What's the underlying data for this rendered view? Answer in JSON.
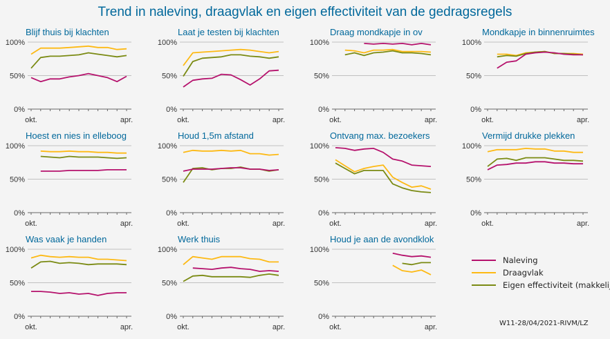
{
  "chart_data": {
    "type": "line",
    "title": "Trend in naleving, draagvlak en eigen effectiviteit van de gedragsregels",
    "x_tick_labels": [
      "okt.",
      "apr."
    ],
    "y_tick_labels": [
      "100%",
      "50%",
      "0%"
    ],
    "ylim": [
      0,
      100
    ],
    "n_points": 11,
    "grid": true,
    "legend_position": "bottom-right",
    "colors": {
      "naleving": "#b5116c",
      "draagvlak": "#fdb913",
      "eigen": "#7a8a12",
      "title": "#01689b",
      "grid": "#c0c0c0"
    },
    "legend": [
      {
        "key": "naleving",
        "label": "Naleving"
      },
      {
        "key": "draagvlak",
        "label": "Draagvlak"
      },
      {
        "key": "eigen",
        "label": "Eigen effectiviteit (makkelijk)"
      }
    ],
    "footer": "W11-28/04/2021-RIVM/LZ",
    "panels": [
      {
        "title": "Blijf thuis bij klachten",
        "naleving": [
          47,
          41,
          45,
          45,
          48,
          50,
          53,
          50,
          47,
          41,
          49
        ],
        "draagvlak": [
          82,
          91,
          91,
          91,
          92,
          93,
          94,
          92,
          92,
          89,
          90
        ],
        "eigen": [
          61,
          77,
          79,
          79,
          80,
          81,
          84,
          82,
          80,
          78,
          80
        ]
      },
      {
        "title": "Laat je testen bij klachten",
        "naleving": [
          33,
          43,
          45,
          46,
          52,
          51,
          44,
          36,
          45,
          57,
          58
        ],
        "draagvlak": [
          65,
          84,
          85,
          86,
          87,
          88,
          89,
          88,
          86,
          84,
          86
        ],
        "eigen": [
          49,
          71,
          76,
          77,
          78,
          81,
          81,
          79,
          78,
          76,
          78
        ]
      },
      {
        "title": "Draag mondkapje in ov",
        "naleving": [
          null,
          null,
          null,
          98,
          97,
          98,
          97,
          98,
          96,
          98,
          96
        ],
        "draagvlak": [
          null,
          88,
          87,
          84,
          88,
          88,
          89,
          86,
          86,
          86,
          85
        ],
        "eigen": [
          null,
          81,
          84,
          80,
          84,
          85,
          87,
          84,
          84,
          83,
          81
        ]
      },
      {
        "title": "Mondkapje in binnenruimtes",
        "naleving": [
          null,
          61,
          70,
          72,
          82,
          84,
          85,
          84,
          82,
          81,
          81
        ],
        "draagvlak": [
          null,
          82,
          82,
          80,
          84,
          85,
          86,
          83,
          83,
          83,
          82
        ],
        "eigen": [
          null,
          78,
          80,
          79,
          83,
          85,
          86,
          83,
          83,
          82,
          81
        ]
      },
      {
        "title": "Hoest en nies in elleboog",
        "naleving": [
          null,
          62,
          62,
          62,
          63,
          63,
          63,
          63,
          64,
          64,
          64
        ],
        "draagvlak": [
          null,
          92,
          91,
          91,
          92,
          91,
          91,
          90,
          90,
          89,
          89
        ],
        "eigen": [
          null,
          84,
          83,
          82,
          84,
          83,
          83,
          83,
          82,
          81,
          82
        ]
      },
      {
        "title": "Houd 1,5m afstand",
        "naleving": [
          62,
          65,
          65,
          65,
          66,
          67,
          67,
          65,
          65,
          63,
          64
        ],
        "draagvlak": [
          90,
          93,
          92,
          92,
          93,
          92,
          93,
          88,
          88,
          86,
          87
        ],
        "eigen": [
          45,
          66,
          67,
          64,
          66,
          66,
          68,
          65,
          65,
          62,
          64
        ]
      },
      {
        "title": "Ontvang max. bezoekers",
        "naleving": [
          97,
          96,
          93,
          95,
          96,
          90,
          80,
          77,
          71,
          70,
          69
        ],
        "draagvlak": [
          79,
          70,
          61,
          66,
          69,
          71,
          53,
          45,
          38,
          40,
          35
        ],
        "eigen": [
          74,
          66,
          58,
          63,
          63,
          63,
          43,
          37,
          33,
          31,
          30
        ]
      },
      {
        "title": "Vermijd drukke plekken",
        "naleving": [
          64,
          71,
          72,
          74,
          74,
          76,
          76,
          74,
          74,
          73,
          73
        ],
        "draagvlak": [
          91,
          94,
          94,
          94,
          96,
          95,
          95,
          92,
          92,
          90,
          90
        ],
        "eigen": [
          69,
          80,
          81,
          78,
          82,
          82,
          82,
          80,
          78,
          78,
          77
        ]
      },
      {
        "title": "Was vaak je handen",
        "naleving": [
          37,
          37,
          36,
          34,
          35,
          33,
          34,
          31,
          34,
          35,
          35
        ],
        "draagvlak": [
          87,
          91,
          89,
          88,
          89,
          88,
          88,
          85,
          85,
          84,
          83
        ],
        "eigen": [
          72,
          81,
          82,
          79,
          80,
          79,
          77,
          78,
          78,
          78,
          77
        ]
      },
      {
        "title": "Werk thuis",
        "naleving": [
          null,
          72,
          71,
          70,
          72,
          73,
          71,
          70,
          67,
          68,
          67
        ],
        "draagvlak": [
          77,
          89,
          87,
          85,
          89,
          89,
          89,
          86,
          85,
          81,
          81
        ],
        "eigen": [
          52,
          60,
          61,
          59,
          59,
          59,
          59,
          58,
          61,
          63,
          61
        ]
      },
      {
        "title": "Houd je aan de avondklok",
        "naleving": [
          null,
          null,
          null,
          null,
          null,
          null,
          94,
          91,
          89,
          90,
          88
        ],
        "draagvlak": [
          null,
          null,
          null,
          null,
          null,
          null,
          76,
          68,
          66,
          69,
          62
        ],
        "eigen": [
          null,
          null,
          null,
          null,
          null,
          null,
          null,
          79,
          77,
          80,
          80
        ]
      }
    ]
  }
}
